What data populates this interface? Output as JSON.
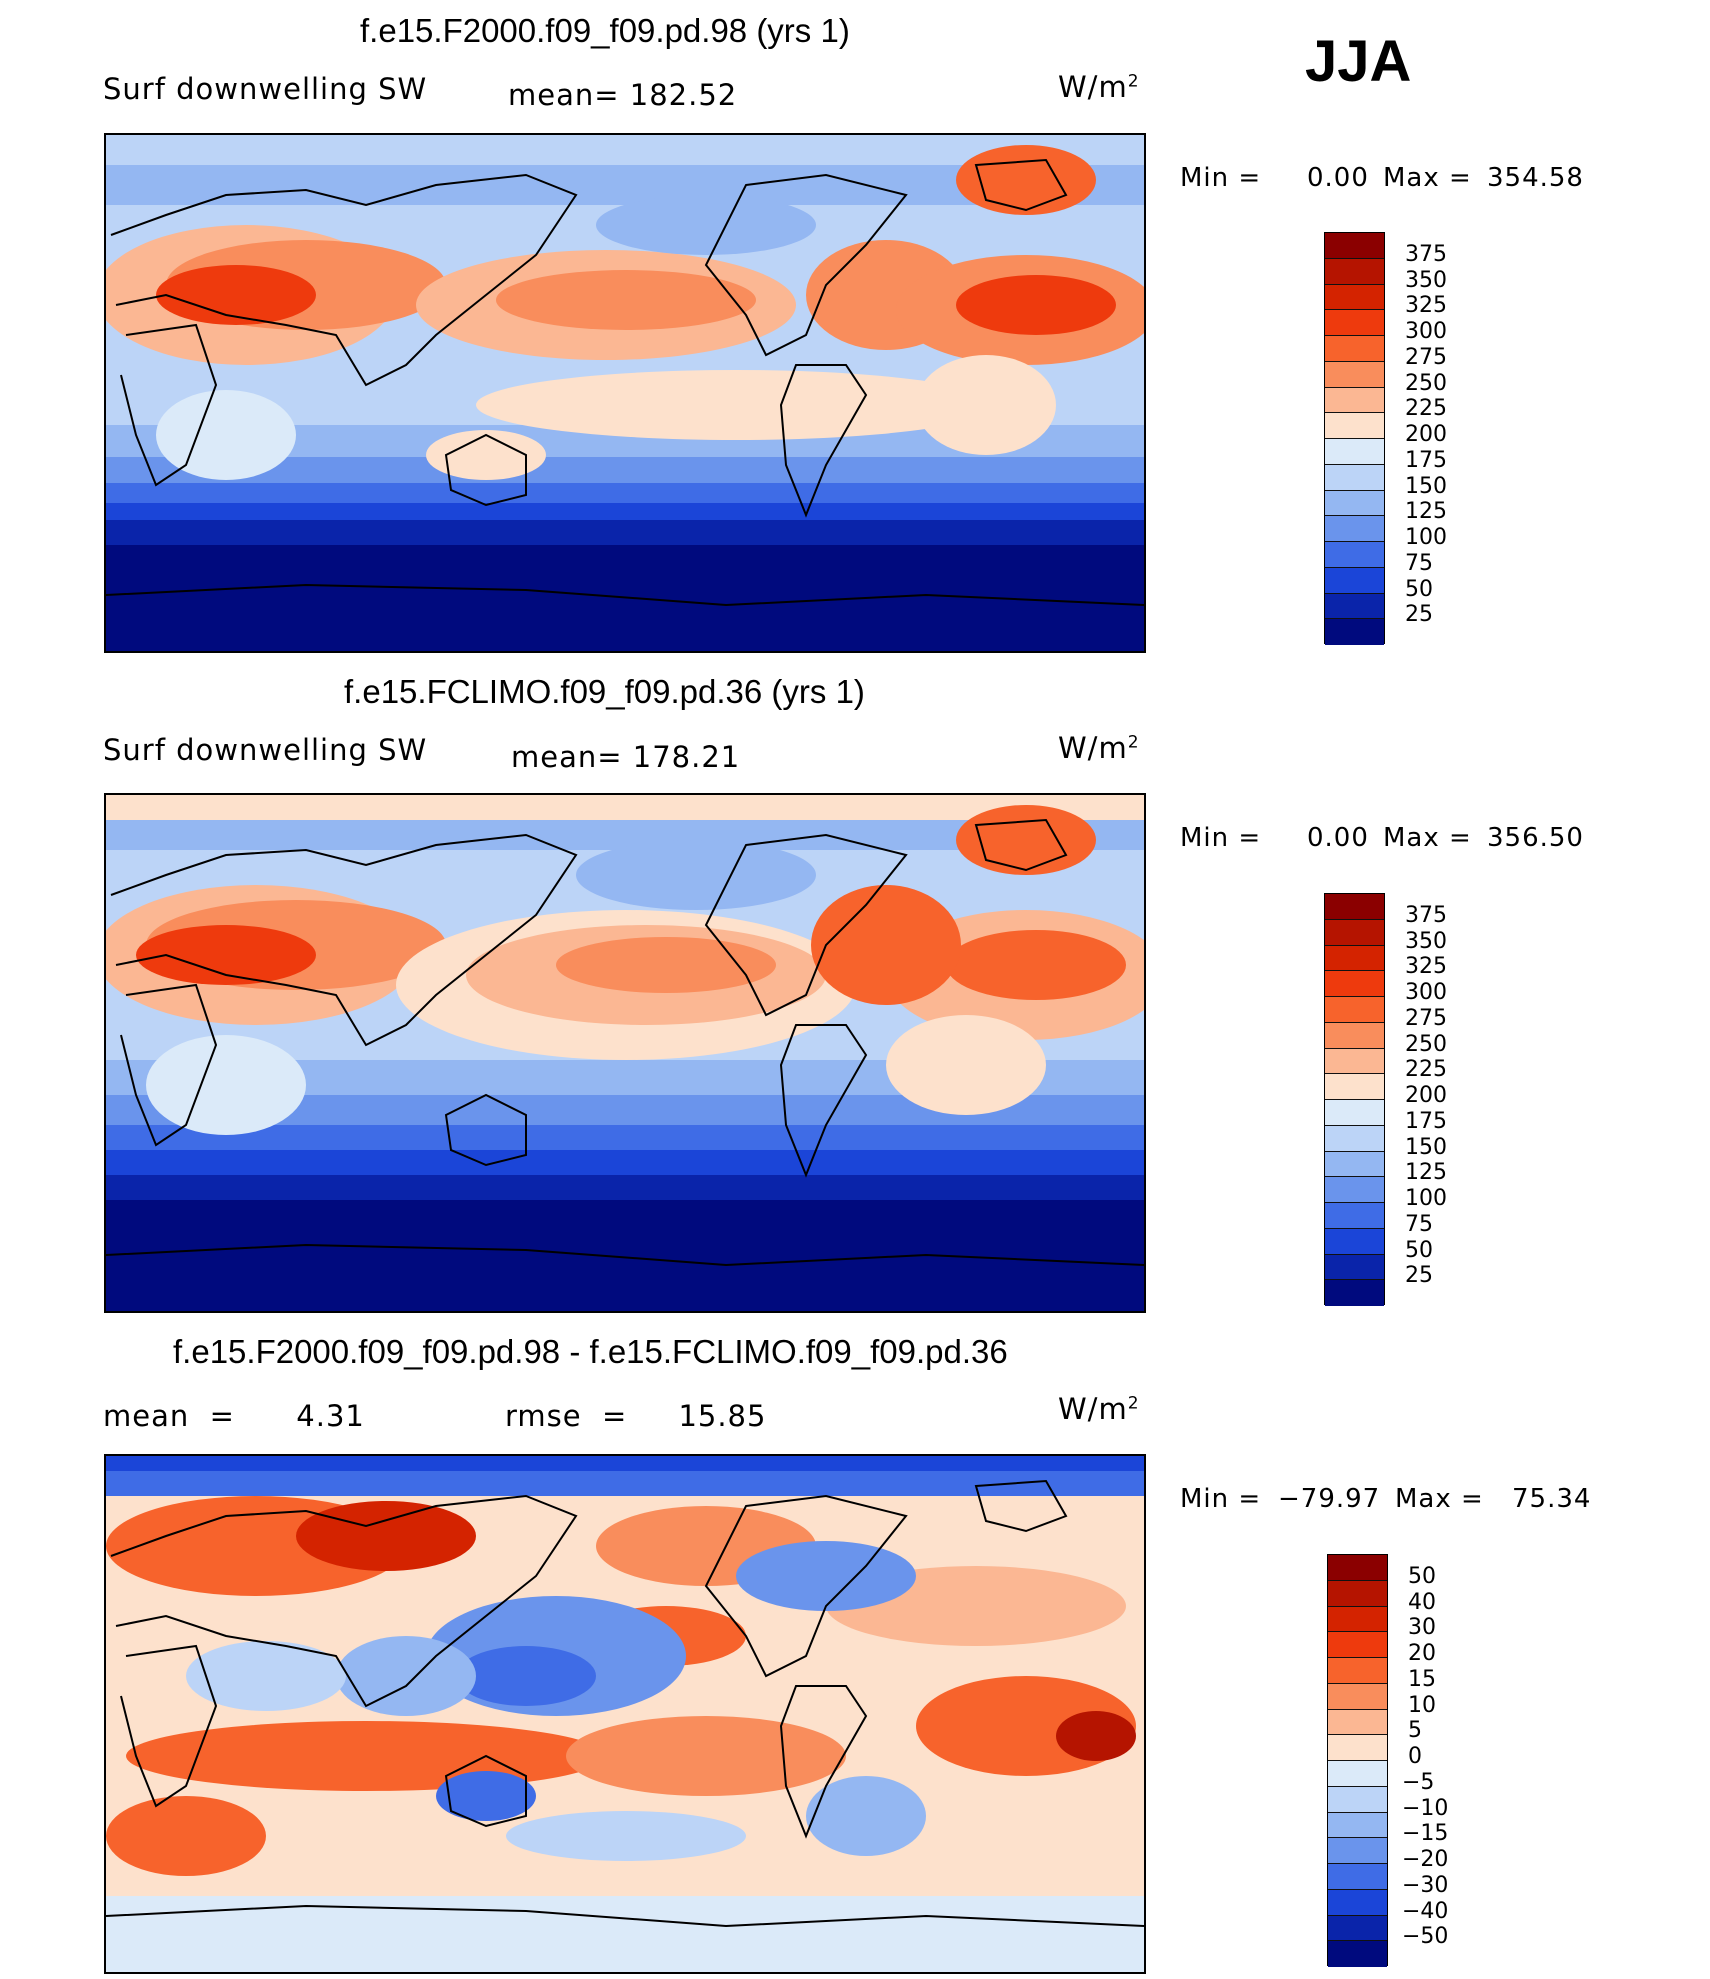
{
  "season": "JJA",
  "panels": [
    {
      "title": "f.e15.F2000.f09_f09.pd.98 (yrs 1)",
      "variable": "Surf  downwelling  SW",
      "stat": "mean=  182.52",
      "units": "W/m",
      "units_sup": "2",
      "min_label": "Min  =",
      "min_value": "0.00",
      "max_label": "Max  =",
      "max_value": "354.58",
      "levels": [
        "375",
        "350",
        "325",
        "300",
        "275",
        "250",
        "225",
        "200",
        "175",
        "150",
        "125",
        "100",
        "75",
        "50",
        "25"
      ],
      "colors": [
        "#8b0000",
        "#b51400",
        "#d42300",
        "#ee3a0d",
        "#f7632c",
        "#f98d5c",
        "#fbb793",
        "#fde1cc",
        "#dbeaf9",
        "#bcd4f7",
        "#94b7f2",
        "#6a94ec",
        "#3f6ce6",
        "#1b45d8",
        "#0a24aa",
        "#000a7e"
      ]
    },
    {
      "title": "f.e15.FCLIMO.f09_f09.pd.36 (yrs 1)",
      "variable": "Surf  downwelling  SW",
      "stat": "mean=  178.21",
      "units": "W/m",
      "units_sup": "2",
      "min_label": "Min  =",
      "min_value": "0.00",
      "max_label": "Max  =",
      "max_value": "356.50",
      "levels": [
        "375",
        "350",
        "325",
        "300",
        "275",
        "250",
        "225",
        "200",
        "175",
        "150",
        "125",
        "100",
        "75",
        "50",
        "25"
      ],
      "colors": [
        "#8b0000",
        "#b51400",
        "#d42300",
        "#ee3a0d",
        "#f7632c",
        "#f98d5c",
        "#fbb793",
        "#fde1cc",
        "#dbeaf9",
        "#bcd4f7",
        "#94b7f2",
        "#6a94ec",
        "#3f6ce6",
        "#1b45d8",
        "#0a24aa",
        "#000a7e"
      ]
    },
    {
      "title": "f.e15.F2000.f09_f09.pd.98 - f.e15.FCLIMO.f09_f09.pd.36",
      "variable": "mean  =      4.31",
      "stat": "rmse  =     15.85",
      "units": "W/m",
      "units_sup": "2",
      "min_label": "Min  =",
      "min_value": "−79.97",
      "max_label": "Max  =",
      "max_value": "75.34",
      "levels": [
        "50",
        "40",
        "30",
        "20",
        "15",
        "10",
        "5",
        "0",
        "−5",
        "−10",
        "−15",
        "−20",
        "−30",
        "−40",
        "−50"
      ],
      "colors": [
        "#8b0000",
        "#b51400",
        "#d42300",
        "#ee3a0d",
        "#f7632c",
        "#f98d5c",
        "#fbb793",
        "#fde1cc",
        "#dbeaf9",
        "#bcd4f7",
        "#94b7f2",
        "#6a94ec",
        "#3f6ce6",
        "#1b45d8",
        "#0a24aa",
        "#000a7e"
      ]
    }
  ]
}
